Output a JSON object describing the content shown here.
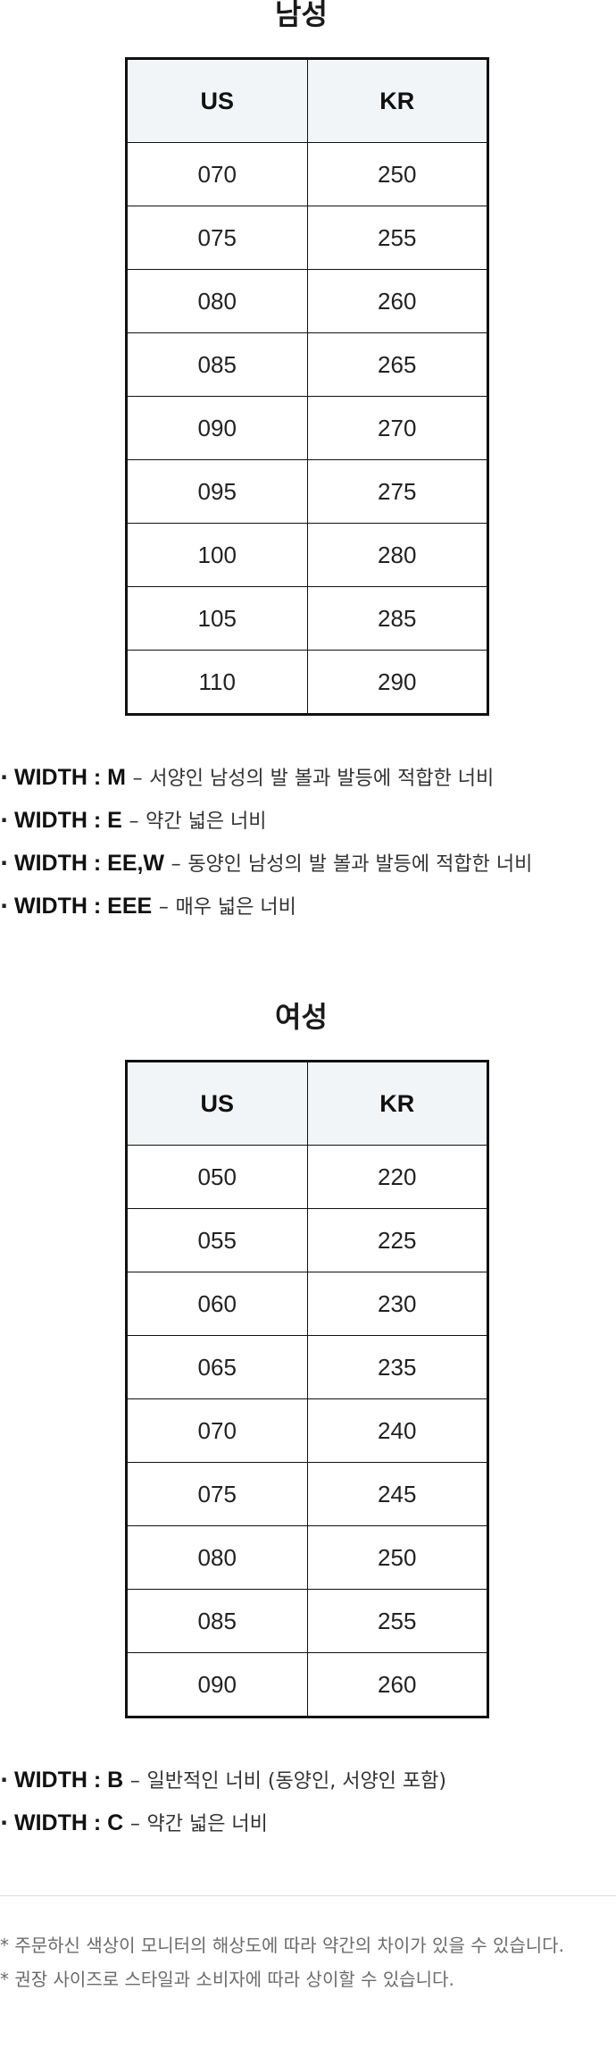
{
  "men": {
    "title": "남성",
    "headers": [
      "US",
      "KR"
    ],
    "rows": [
      [
        "070",
        "250"
      ],
      [
        "075",
        "255"
      ],
      [
        "080",
        "260"
      ],
      [
        "085",
        "265"
      ],
      [
        "090",
        "270"
      ],
      [
        "095",
        "275"
      ],
      [
        "100",
        "280"
      ],
      [
        "105",
        "285"
      ],
      [
        "110",
        "290"
      ]
    ],
    "widths": [
      {
        "code": "WIDTH : M",
        "desc": "서양인 남성의 발 볼과 발등에 적합한 너비"
      },
      {
        "code": "WIDTH : E",
        "desc": "약간 넓은 너비"
      },
      {
        "code": "WIDTH : EE,W",
        "desc": "동양인 남성의 발 볼과 발등에 적합한 너비"
      },
      {
        "code": "WIDTH : EEE",
        "desc": "매우 넓은 너비"
      }
    ]
  },
  "women": {
    "title": "여성",
    "headers": [
      "US",
      "KR"
    ],
    "rows": [
      [
        "050",
        "220"
      ],
      [
        "055",
        "225"
      ],
      [
        "060",
        "230"
      ],
      [
        "065",
        "235"
      ],
      [
        "070",
        "240"
      ],
      [
        "075",
        "245"
      ],
      [
        "080",
        "250"
      ],
      [
        "085",
        "255"
      ],
      [
        "090",
        "260"
      ]
    ],
    "widths": [
      {
        "code": "WIDTH : B",
        "desc": "일반적인 너비 (동양인, 서양인 포함)"
      },
      {
        "code": "WIDTH : C",
        "desc": "약간 넓은 너비"
      }
    ]
  },
  "bullet": "·",
  "dash": "–",
  "notes": [
    "* 주문하신 색상이 모니터의 해상도에 따라 약간의 차이가 있을 수 있습니다.",
    "* 권장 사이즈로 스타일과 소비자에 따라 상이할 수 있습니다."
  ]
}
